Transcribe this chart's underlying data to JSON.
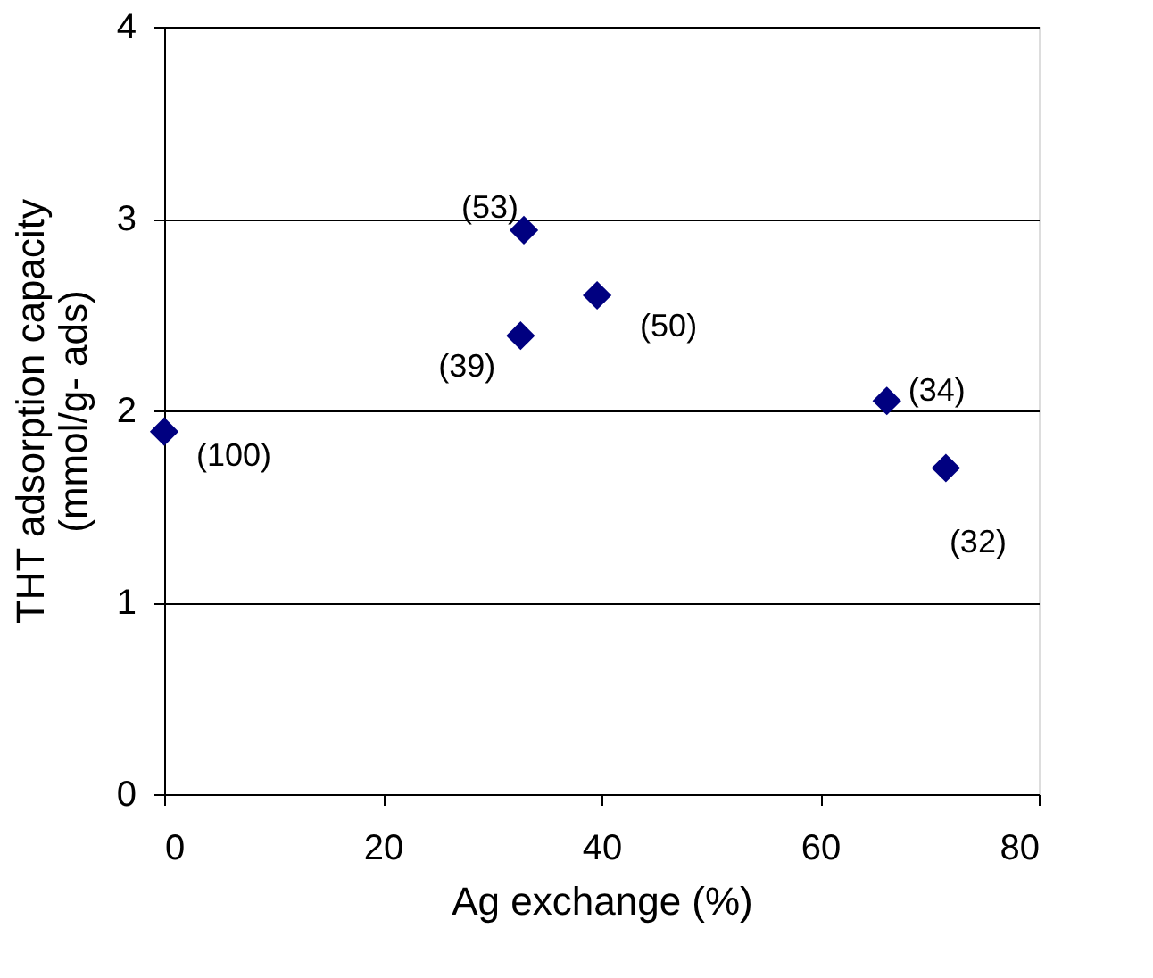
{
  "chart_data": {
    "type": "scatter",
    "xlabel": "Ag exchange (%)",
    "ylabel": "THT adsorption capacity\n(mmol/g- ads)",
    "x": [
      0,
      32.9,
      32.6,
      39.6,
      66.1,
      71.5
    ],
    "values": [
      1.89,
      2.94,
      2.39,
      2.6,
      2.05,
      1.7
    ],
    "color": "#000080",
    "marker": "diamond",
    "grid": "y",
    "xlim": [
      0,
      80
    ],
    "xticks": [
      0,
      20,
      40,
      60,
      80
    ],
    "ylim": [
      0,
      4
    ],
    "yticks": [
      0,
      1,
      2,
      3,
      4
    ],
    "annotations": [
      {
        "text": "(100)",
        "x": 0,
        "y": 1.89
      },
      {
        "text": "(53)",
        "x": 32.9,
        "y": 2.94
      },
      {
        "text": "(39)",
        "x": 32.6,
        "y": 2.39
      },
      {
        "text": "(50)",
        "x": 39.6,
        "y": 2.6
      },
      {
        "text": "(34)",
        "x": 66.1,
        "y": 2.05
      },
      {
        "text": "(32)",
        "x": 71.5,
        "y": 1.7
      }
    ]
  }
}
